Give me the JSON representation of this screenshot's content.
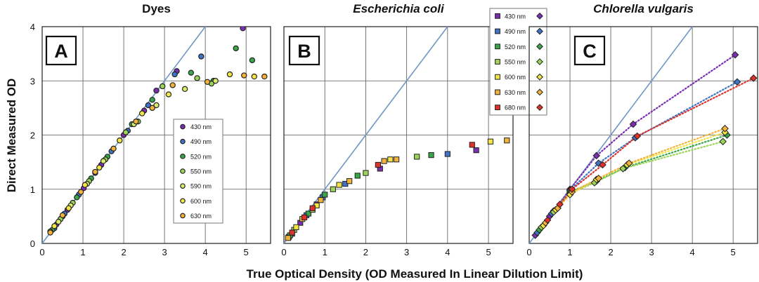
{
  "ylabel": "Direct Measured OD",
  "xlabel": "True Optical Density  (OD Measured In Linear Dilution Limit)",
  "colors": {
    "430 nm": "#7a2fb0",
    "490 nm": "#3f74c4",
    "520 nm": "#3aa64a",
    "550 nm": "#9ed45a",
    "590 nm": "#d8ec6a",
    "600 nm": "#f2e544",
    "630 nm": "#f3b23a",
    "680 nm": "#e0322a",
    "identity": "#6f97c6"
  },
  "chart_data": [
    {
      "type": "scatter",
      "title": "Dyes",
      "panel_label": "A",
      "xlim": [
        0,
        5.6
      ],
      "ylim": [
        0,
        4
      ],
      "xticks": [
        0,
        1,
        2,
        3,
        4,
        5
      ],
      "yticks": [
        0,
        1,
        2,
        3,
        4
      ],
      "identity_line": true,
      "grid": true,
      "legend_location": "center-right",
      "legend": [
        "430 nm",
        "490 nm",
        "520 nm",
        "550 nm",
        "590 nm",
        "600 nm",
        "630 nm"
      ],
      "series": [
        {
          "name": "430 nm",
          "marker": "circle",
          "points": [
            [
              0.35,
              0.35
            ],
            [
              0.62,
              0.62
            ],
            [
              1.02,
              1.02
            ],
            [
              1.45,
              1.45
            ],
            [
              2.0,
              2.0
            ],
            [
              2.5,
              2.45
            ],
            [
              2.8,
              2.82
            ],
            [
              3.3,
              3.18
            ],
            [
              4.92,
              3.97
            ]
          ]
        },
        {
          "name": "490 nm",
          "marker": "circle",
          "points": [
            [
              0.3,
              0.28
            ],
            [
              0.55,
              0.55
            ],
            [
              0.9,
              0.9
            ],
            [
              1.3,
              1.3
            ],
            [
              1.7,
              1.7
            ],
            [
              2.1,
              2.08
            ],
            [
              2.6,
              2.55
            ],
            [
              3.25,
              3.12
            ],
            [
              3.9,
              3.45
            ]
          ]
        },
        {
          "name": "520 nm",
          "marker": "circle",
          "points": [
            [
              0.25,
              0.25
            ],
            [
              0.5,
              0.5
            ],
            [
              0.85,
              0.85
            ],
            [
              1.2,
              1.2
            ],
            [
              1.6,
              1.6
            ],
            [
              2.2,
              2.2
            ],
            [
              2.7,
              2.65
            ],
            [
              3.65,
              3.15
            ],
            [
              4.2,
              3.0
            ],
            [
              4.75,
              3.6
            ],
            [
              5.15,
              3.38
            ]
          ]
        },
        {
          "name": "550 nm",
          "marker": "circle",
          "points": [
            [
              0.2,
              0.22
            ],
            [
              0.45,
              0.45
            ],
            [
              0.75,
              0.75
            ],
            [
              1.15,
              1.15
            ],
            [
              1.55,
              1.55
            ],
            [
              2.05,
              2.05
            ],
            [
              2.35,
              2.25
            ],
            [
              2.95,
              2.9
            ],
            [
              3.8,
              3.05
            ],
            [
              4.15,
              2.95
            ]
          ]
        },
        {
          "name": "590 nm",
          "marker": "circle",
          "points": [
            [
              0.4,
              0.4
            ],
            [
              0.7,
              0.7
            ],
            [
              1.1,
              1.1
            ],
            [
              1.5,
              1.52
            ],
            [
              2.25,
              2.2
            ],
            [
              2.8,
              2.55
            ],
            [
              3.5,
              2.85
            ],
            [
              4.25,
              3.0
            ]
          ]
        },
        {
          "name": "600 nm",
          "marker": "circle",
          "points": [
            [
              0.3,
              0.32
            ],
            [
              0.65,
              0.65
            ],
            [
              1.05,
              1.08
            ],
            [
              1.4,
              1.4
            ],
            [
              1.9,
              1.9
            ],
            [
              2.45,
              2.4
            ],
            [
              3.1,
              2.75
            ],
            [
              4.6,
              3.12
            ],
            [
              5.2,
              3.08
            ]
          ]
        },
        {
          "name": "630 nm",
          "marker": "circle",
          "points": [
            [
              0.2,
              0.2
            ],
            [
              0.5,
              0.52
            ],
            [
              0.95,
              0.95
            ],
            [
              1.3,
              1.32
            ],
            [
              1.75,
              1.75
            ],
            [
              2.3,
              2.25
            ],
            [
              2.7,
              2.5
            ],
            [
              3.2,
              2.92
            ],
            [
              4.05,
              2.98
            ],
            [
              4.95,
              3.1
            ],
            [
              5.45,
              3.08
            ]
          ]
        }
      ]
    },
    {
      "type": "scatter",
      "title": "Escherichia coli",
      "panel_label": "B",
      "xlim": [
        0,
        5.6
      ],
      "ylim": [
        0,
        4
      ],
      "xticks": [
        0,
        1,
        2,
        3,
        4,
        5
      ],
      "yticks": [
        0,
        1,
        2,
        3,
        4
      ],
      "identity_line": true,
      "grid": true,
      "legend_location": "top-right",
      "legend": [
        "430 nm",
        "490 nm",
        "520 nm",
        "550 nm",
        "600 nm",
        "630 nm",
        "680 nm"
      ],
      "series": [
        {
          "name": "430 nm",
          "marker": "square",
          "points": [
            [
              0.12,
              0.12
            ],
            [
              0.4,
              0.38
            ],
            [
              0.8,
              0.72
            ],
            [
              2.35,
              1.38
            ],
            [
              4.7,
              1.72
            ]
          ]
        },
        {
          "name": "490 nm",
          "marker": "square",
          "points": [
            [
              0.2,
              0.18
            ],
            [
              0.55,
              0.52
            ],
            [
              0.95,
              0.85
            ],
            [
              1.5,
              1.1
            ],
            [
              4.0,
              1.65
            ]
          ]
        },
        {
          "name": "520 nm",
          "marker": "square",
          "points": [
            [
              0.15,
              0.15
            ],
            [
              0.6,
              0.55
            ],
            [
              1.0,
              0.9
            ],
            [
              1.8,
              1.25
            ],
            [
              3.6,
              1.63
            ]
          ]
        },
        {
          "name": "550 nm",
          "marker": "square",
          "points": [
            [
              0.25,
              0.25
            ],
            [
              0.7,
              0.62
            ],
            [
              1.2,
              1.0
            ],
            [
              2.0,
              1.3
            ],
            [
              3.25,
              1.6
            ]
          ]
        },
        {
          "name": "600 nm",
          "marker": "square",
          "points": [
            [
              0.3,
              0.3
            ],
            [
              0.8,
              0.7
            ],
            [
              1.35,
              1.08
            ],
            [
              2.6,
              1.55
            ],
            [
              5.05,
              1.88
            ]
          ]
        },
        {
          "name": "630 nm",
          "marker": "square",
          "points": [
            [
              0.1,
              0.1
            ],
            [
              0.45,
              0.45
            ],
            [
              0.9,
              0.8
            ],
            [
              1.6,
              1.15
            ],
            [
              2.45,
              1.52
            ],
            [
              2.75,
              1.55
            ],
            [
              5.45,
              1.9
            ]
          ]
        },
        {
          "name": "680 nm",
          "marker": "square",
          "points": [
            [
              0.2,
              0.2
            ],
            [
              0.5,
              0.48
            ],
            [
              0.7,
              0.65
            ],
            [
              2.3,
              1.45
            ],
            [
              4.6,
              1.82
            ]
          ]
        }
      ]
    },
    {
      "type": "scatter",
      "title": "Chlorella vulgaris",
      "panel_label": "C",
      "xlim": [
        0,
        5.6
      ],
      "ylim": [
        0,
        4
      ],
      "xticks": [
        0,
        1,
        2,
        3,
        4,
        5
      ],
      "yticks": [
        0,
        1,
        2,
        3,
        4
      ],
      "identity_line": true,
      "grid": true,
      "fit_lines": "dotted",
      "series": [
        {
          "name": "430 nm",
          "marker": "diamond",
          "points": [
            [
              0.15,
              0.15
            ],
            [
              0.5,
              0.5
            ],
            [
              1.0,
              1.0
            ],
            [
              1.65,
              1.62
            ],
            [
              2.55,
              2.2
            ],
            [
              5.05,
              3.48
            ]
          ]
        },
        {
          "name": "490 nm",
          "marker": "diamond",
          "points": [
            [
              0.2,
              0.2
            ],
            [
              0.55,
              0.55
            ],
            [
              1.0,
              0.98
            ],
            [
              1.7,
              1.48
            ],
            [
              2.6,
              1.95
            ],
            [
              5.1,
              2.98
            ]
          ]
        },
        {
          "name": "520 nm",
          "marker": "diamond",
          "points": [
            [
              0.25,
              0.25
            ],
            [
              0.6,
              0.6
            ],
            [
              1.0,
              0.95
            ],
            [
              1.65,
              1.15
            ],
            [
              2.35,
              1.4
            ],
            [
              4.85,
              2.0
            ]
          ]
        },
        {
          "name": "550 nm",
          "marker": "diamond",
          "points": [
            [
              0.3,
              0.3
            ],
            [
              0.6,
              0.58
            ],
            [
              1.0,
              0.92
            ],
            [
              1.6,
              1.12
            ],
            [
              2.3,
              1.38
            ],
            [
              4.75,
              1.88
            ]
          ]
        },
        {
          "name": "600 nm",
          "marker": "diamond",
          "points": [
            [
              0.35,
              0.33
            ],
            [
              0.65,
              0.62
            ],
            [
              1.0,
              0.9
            ],
            [
              1.65,
              1.18
            ],
            [
              2.4,
              1.45
            ],
            [
              4.8,
              2.05
            ]
          ]
        },
        {
          "name": "630 nm",
          "marker": "diamond",
          "points": [
            [
              0.4,
              0.38
            ],
            [
              0.7,
              0.65
            ],
            [
              1.05,
              0.95
            ],
            [
              1.7,
              1.2
            ],
            [
              2.45,
              1.48
            ],
            [
              4.8,
              2.12
            ]
          ]
        },
        {
          "name": "680 nm",
          "marker": "diamond",
          "points": [
            [
              0.45,
              0.43
            ],
            [
              0.75,
              0.72
            ],
            [
              1.05,
              1.0
            ],
            [
              1.8,
              1.45
            ],
            [
              2.65,
              1.98
            ],
            [
              5.5,
              3.05
            ]
          ]
        }
      ]
    }
  ]
}
